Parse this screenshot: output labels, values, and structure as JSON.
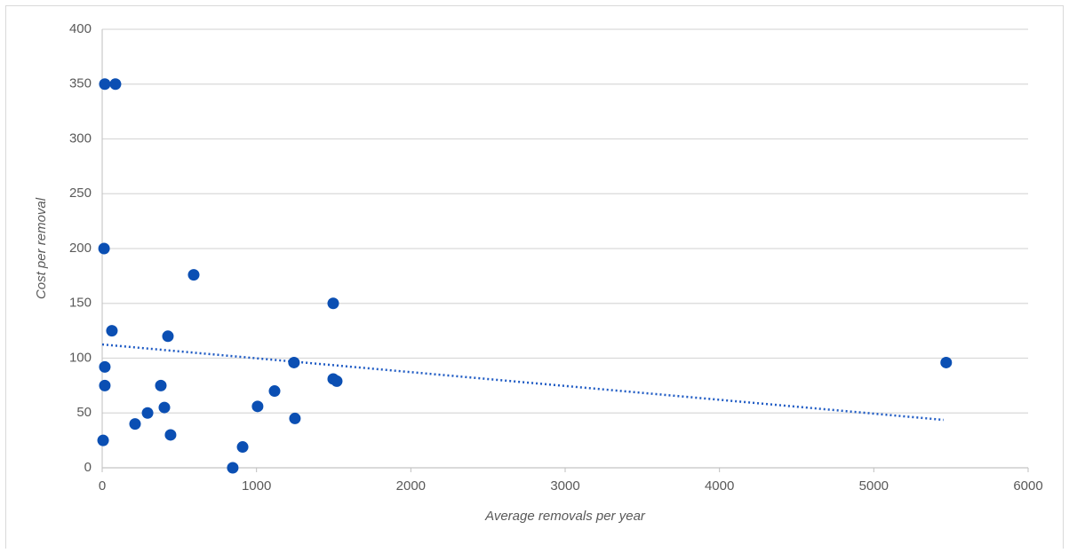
{
  "chart_data": {
    "type": "scatter",
    "xlabel": "Average  removals per year",
    "ylabel": "Cost per removal",
    "x": [
      17,
      86,
      12,
      593,
      63,
      426,
      1497,
      17,
      17,
      380,
      1243,
      1497,
      1520,
      5469,
      1117,
      1007,
      403,
      294,
      213,
      443,
      1249,
      6,
      910,
      846
    ],
    "values": [
      350,
      350,
      200,
      176,
      125,
      120,
      150,
      92,
      75,
      75,
      96,
      81,
      79,
      96,
      70,
      56,
      55,
      50,
      40,
      30,
      45,
      25,
      19,
      0
    ],
    "color": "#0b4fb3",
    "trendline": {
      "x": [
        0,
        5452
      ],
      "y": [
        112.5,
        43.7
      ],
      "color": "#1f5bc4"
    },
    "xlim": [
      0,
      6000
    ],
    "xticks": [
      0,
      1000,
      2000,
      3000,
      4000,
      5000,
      6000
    ],
    "ylim": [
      0,
      400
    ],
    "yticks": [
      0,
      50,
      100,
      150,
      200,
      250,
      300,
      350,
      400
    ],
    "grid": true
  }
}
